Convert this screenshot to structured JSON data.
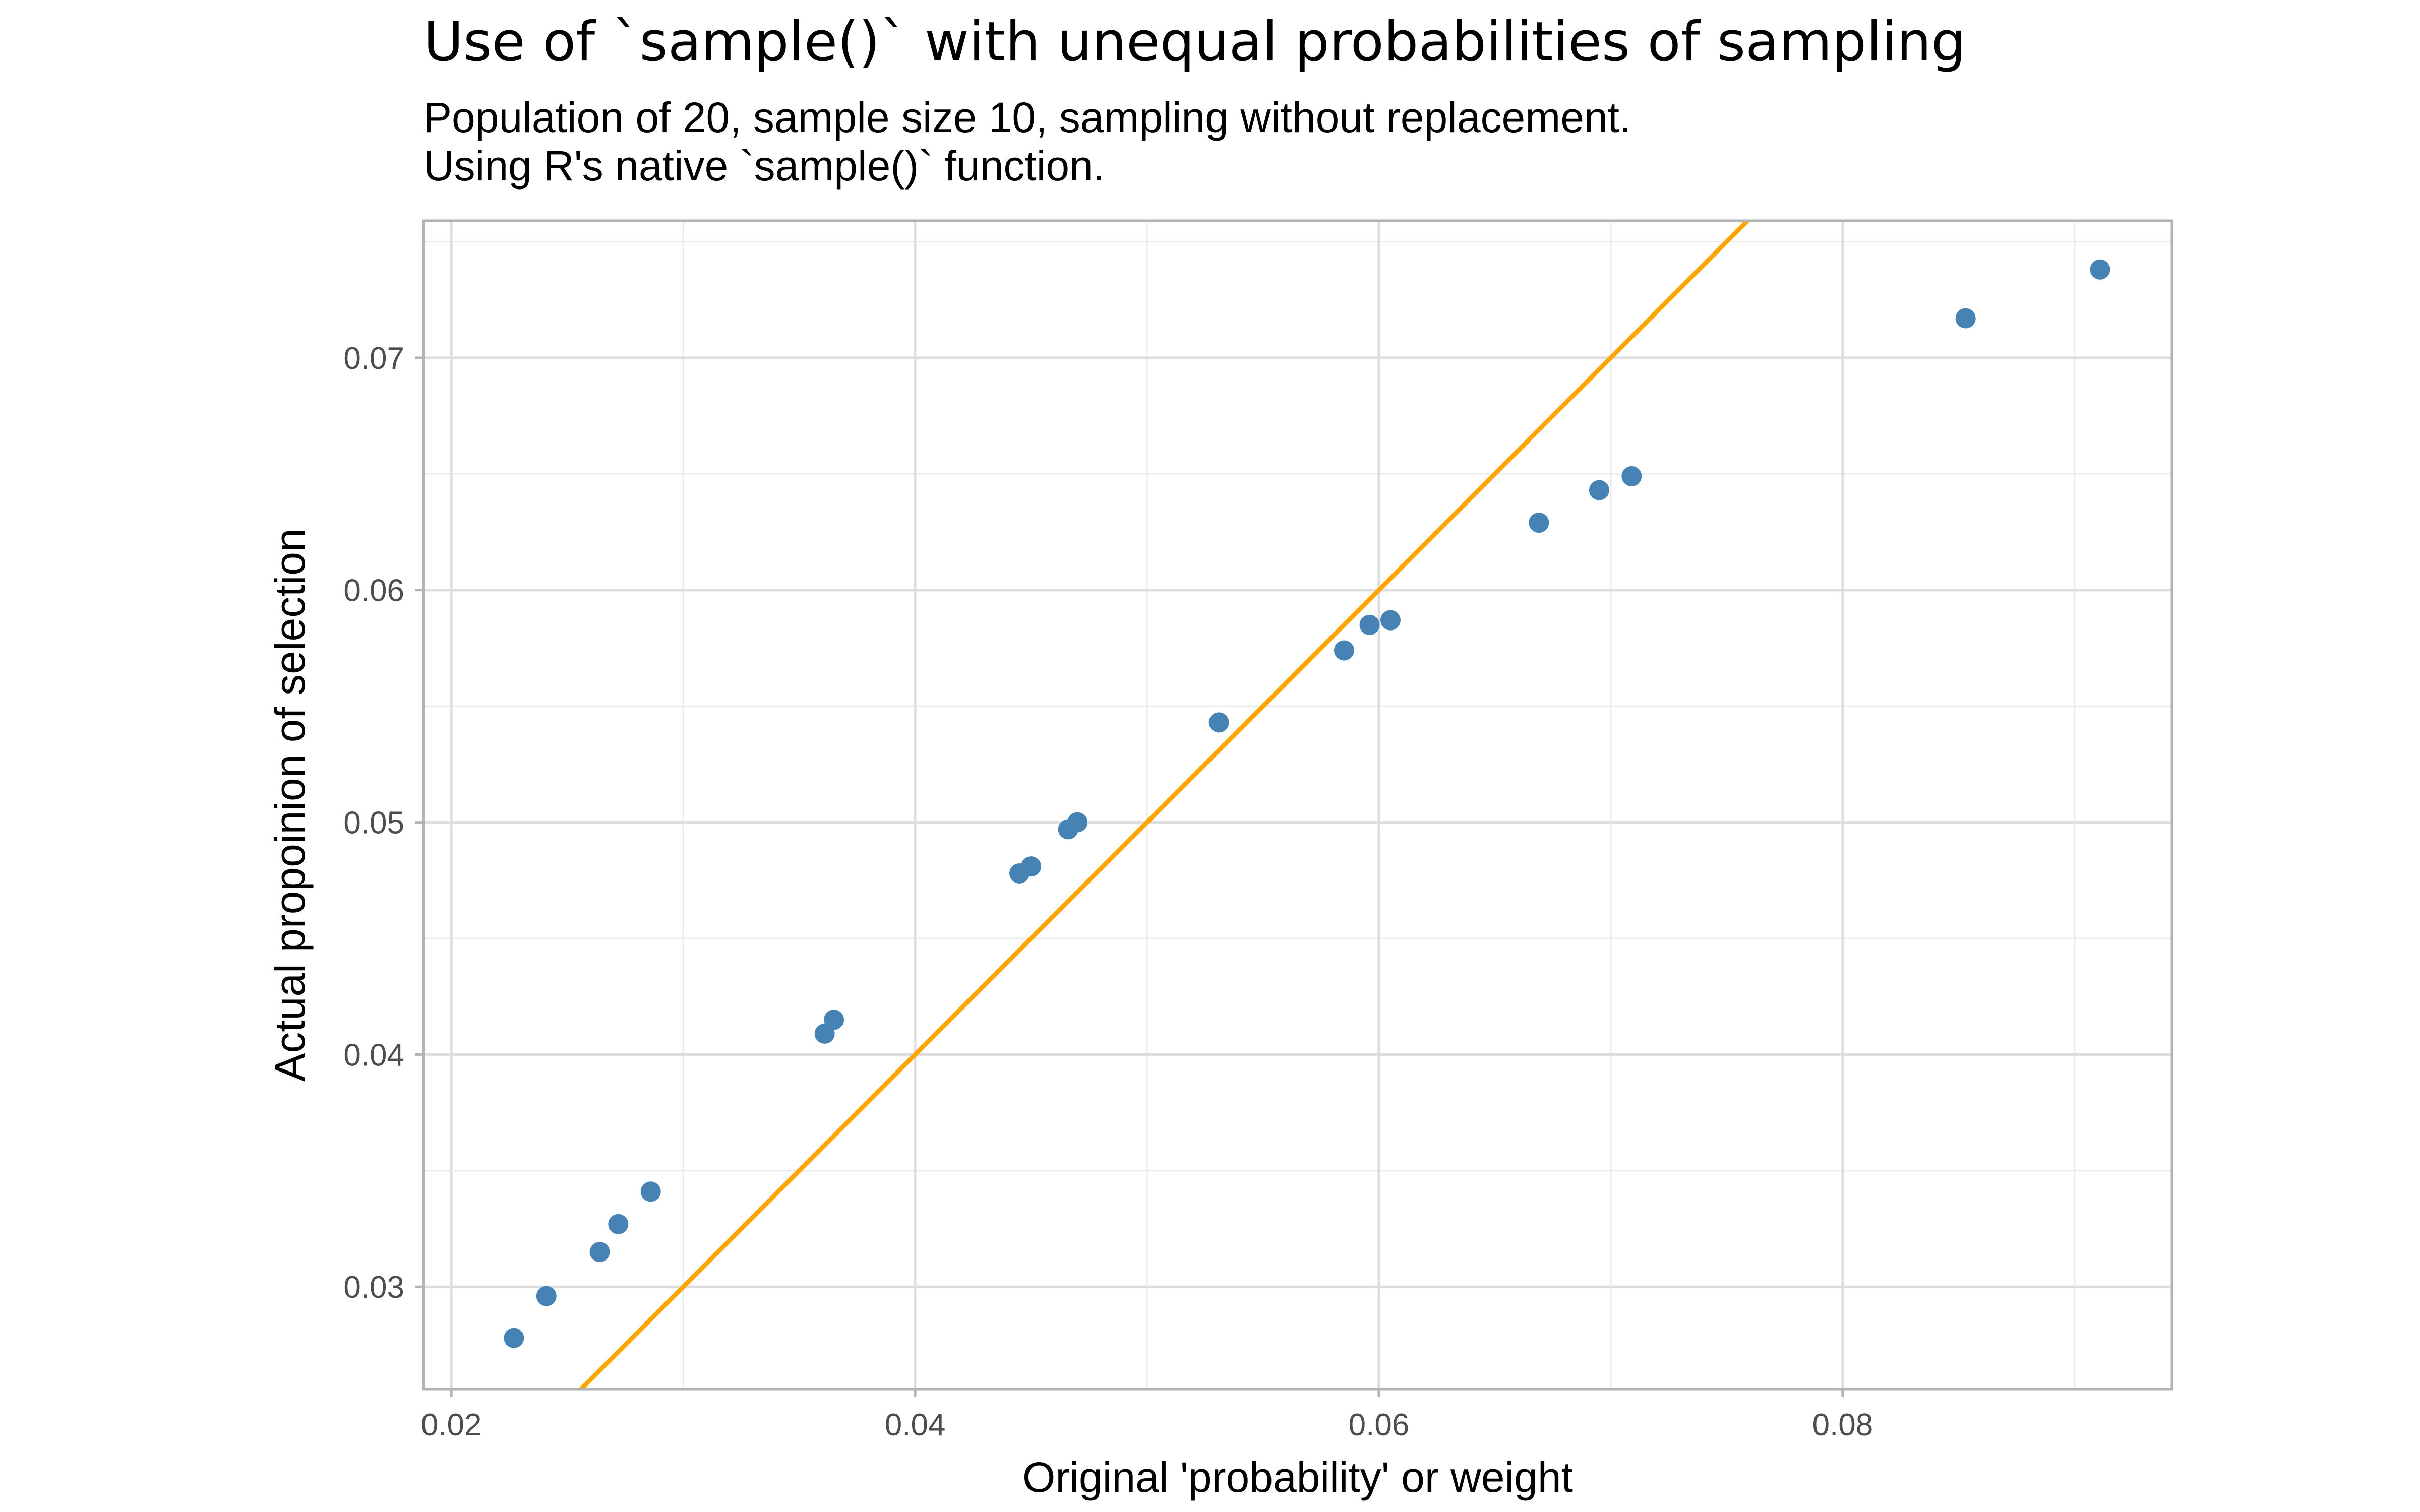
{
  "chart_data": {
    "type": "scatter",
    "title": "Use of `sample()` with unequal probabilities of sampling",
    "subtitle_lines": [
      "Population of 20, sample size 10, sampling without replacement.",
      "Using R's native `sample()` function."
    ],
    "xlabel": "Original 'probability' or weight",
    "ylabel": "Actual propoinion of selection",
    "xlim": [
      0.0188,
      0.0942
    ],
    "ylim": [
      0.0256,
      0.0759
    ],
    "x_ticks": [
      0.02,
      0.04,
      0.06,
      0.08
    ],
    "x_tick_labels": [
      "0.02",
      "0.04",
      "0.06",
      "0.08"
    ],
    "y_ticks": [
      0.03,
      0.04,
      0.05,
      0.06,
      0.07
    ],
    "y_tick_labels": [
      "0.03",
      "0.04",
      "0.05",
      "0.06",
      "0.07"
    ],
    "grid": true,
    "point_color": "#4682b4",
    "reference_line": {
      "slope": 1,
      "intercept": 0,
      "color": "#ffa500"
    },
    "points": [
      {
        "x": 0.0227,
        "y": 0.0278
      },
      {
        "x": 0.0241,
        "y": 0.0296
      },
      {
        "x": 0.0264,
        "y": 0.0315
      },
      {
        "x": 0.0272,
        "y": 0.0327
      },
      {
        "x": 0.0286,
        "y": 0.0341
      },
      {
        "x": 0.0361,
        "y": 0.0409
      },
      {
        "x": 0.0365,
        "y": 0.0415
      },
      {
        "x": 0.0445,
        "y": 0.0478
      },
      {
        "x": 0.045,
        "y": 0.0481
      },
      {
        "x": 0.0466,
        "y": 0.0497
      },
      {
        "x": 0.047,
        "y": 0.05
      },
      {
        "x": 0.0531,
        "y": 0.0543
      },
      {
        "x": 0.0585,
        "y": 0.0574
      },
      {
        "x": 0.0596,
        "y": 0.0585
      },
      {
        "x": 0.0605,
        "y": 0.0587
      },
      {
        "x": 0.0669,
        "y": 0.0629
      },
      {
        "x": 0.0695,
        "y": 0.0643
      },
      {
        "x": 0.0709,
        "y": 0.0649
      },
      {
        "x": 0.0853,
        "y": 0.0717
      },
      {
        "x": 0.0911,
        "y": 0.0738
      }
    ]
  }
}
